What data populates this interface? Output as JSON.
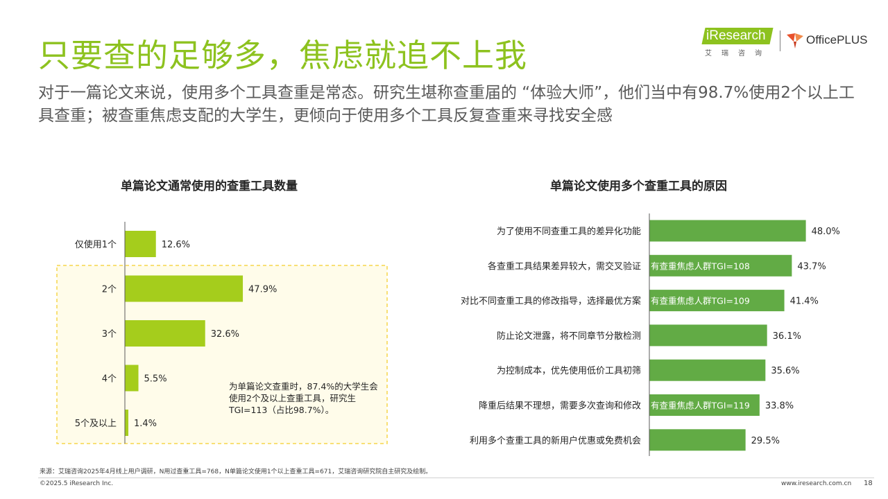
{
  "page": {
    "title": "只要查的足够多，焦虑就追不上我",
    "subtitle": "对于一篇论文来说，使用多个工具查重是常态。研究生堪称查重届的 “体验大师”，他们当中有98.7%使用2个以上工具查重；被查重焦虑支配的大学生，更倾向于使用多个工具反复查重来寻找安全感",
    "source": "来源：艾瑞咨询2025年4月线上用户调研，N用过查重工具=768，N单篇论文使用1个以上查重工具=671，艾瑞咨询研究院自主研究及绘制。",
    "copyright": "©2025.5 iResearch Inc.",
    "url": "www.iresearch.com.cn",
    "page_number": "18"
  },
  "logo": {
    "iresearch": "iResearch",
    "iresearch_cn": "艾瑞咨询",
    "office": "OfficePLUS"
  },
  "colors": {
    "title_green": "#8dc21f",
    "left_bar": "#a5cd1c",
    "right_bar": "#62ab45",
    "highlight_border": "#f5d54a",
    "highlight_fill": "#fffcea"
  },
  "chart_data": [
    {
      "type": "bar",
      "orientation": "horizontal",
      "title": "单篇论文通常使用的查重工具数量",
      "categories": [
        "仅使用1个",
        "2个",
        "3个",
        "4个",
        "5个及以上"
      ],
      "values": [
        12.6,
        47.9,
        32.6,
        5.5,
        1.4
      ],
      "value_labels": [
        "12.6%",
        "47.9%",
        "32.6%",
        "5.5%",
        "1.4%"
      ],
      "unit": "%",
      "highlight": {
        "categories": [
          "2个",
          "3个",
          "4个",
          "5个及以上"
        ],
        "note": "为单篇论文查重时，87.4%的大学生会使用2个及以上查重工具，研究生TGI=113（占比98.7%）。"
      }
    },
    {
      "type": "bar",
      "orientation": "horizontal",
      "title": "单篇论文使用多个查重工具的原因",
      "categories": [
        "为了使用不同查重工具的差异化功能",
        "各查重工具结果差异较大，需交叉验证",
        "对比不同查重工具的修改指导，选择最优方案",
        "防止论文泄露，将不同章节分散检测",
        "为控制成本，优先使用低价工具初筛",
        "降重后结果不理想，需要多次查询和修改",
        "利用多个查重工具的新用户优惠或免费机会"
      ],
      "values": [
        48.0,
        43.7,
        41.4,
        36.1,
        35.6,
        33.8,
        29.5
      ],
      "value_labels": [
        "48.0%",
        "43.7%",
        "41.4%",
        "36.1%",
        "35.6%",
        "33.8%",
        "29.5%"
      ],
      "bar_notes": [
        "",
        "有查重焦虑人群TGI=108",
        "有查重焦虑人群TGI=109",
        "",
        "",
        "有查重焦虑人群TGI=119",
        ""
      ],
      "unit": "%"
    }
  ]
}
